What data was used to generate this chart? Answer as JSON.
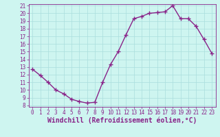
{
  "x": [
    0,
    1,
    2,
    3,
    4,
    5,
    6,
    7,
    8,
    9,
    10,
    11,
    12,
    13,
    14,
    15,
    16,
    17,
    18,
    19,
    20,
    21,
    22,
    23
  ],
  "y": [
    12.7,
    11.9,
    11.0,
    10.0,
    9.5,
    8.8,
    8.5,
    8.3,
    8.4,
    11.0,
    13.3,
    15.0,
    17.2,
    19.3,
    19.6,
    20.0,
    20.1,
    20.2,
    21.0,
    19.3,
    19.3,
    18.3,
    16.6,
    14.8
  ],
  "line_color": "#882288",
  "marker": "+",
  "marker_size": 4,
  "bg_color": "#cef5f0",
  "grid_color": "#aadddd",
  "xlabel": "Windchill (Refroidissement éolien,°C)",
  "ylim": [
    8,
    21
  ],
  "xlim": [
    -0.5,
    23.5
  ],
  "yticks": [
    8,
    9,
    10,
    11,
    12,
    13,
    14,
    15,
    16,
    17,
    18,
    19,
    20,
    21
  ],
  "xticks": [
    0,
    1,
    2,
    3,
    4,
    5,
    6,
    7,
    8,
    9,
    10,
    11,
    12,
    13,
    14,
    15,
    16,
    17,
    18,
    19,
    20,
    21,
    22,
    23
  ],
  "tick_color": "#882288",
  "font_size": 5.5,
  "xlabel_font_size": 7.0,
  "line_width": 1.0,
  "marker_edge_width": 1.0
}
